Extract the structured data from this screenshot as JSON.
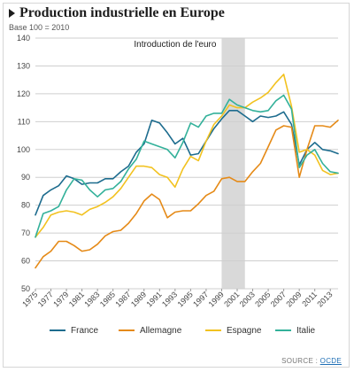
{
  "header": {
    "title": "Production industrielle en Europe",
    "subtitle": "Base 100 = 2010"
  },
  "source": {
    "label": "SOURCE : ",
    "link": "OCDE"
  },
  "colors": {
    "France": "#1d6c8e",
    "Allemagne": "#e58a17",
    "Espagne": "#f2c220",
    "Italie": "#33b19a",
    "grid": "#cfcfcf",
    "band": "#d9d9d9"
  },
  "chart_data": {
    "type": "line",
    "title": "Production industrielle en Europe",
    "subtitle": "Base 100 = 2010",
    "xlabel": "",
    "ylabel": "",
    "x": [
      1975,
      1976,
      1977,
      1978,
      1979,
      1980,
      1981,
      1982,
      1983,
      1984,
      1985,
      1986,
      1987,
      1988,
      1989,
      1990,
      1991,
      1992,
      1993,
      1994,
      1995,
      1996,
      1997,
      1998,
      1999,
      2000,
      2001,
      2002,
      2003,
      2004,
      2005,
      2006,
      2007,
      2008,
      2009,
      2010,
      2011,
      2012,
      2013,
      2014
    ],
    "x_tick_labels": [
      "1975",
      "1977",
      "1979",
      "1981",
      "1983",
      "1985",
      "1987",
      "1989",
      "1991",
      "1993",
      "1995",
      "1997",
      "1999",
      "2001",
      "2003",
      "2005",
      "2007",
      "2009",
      "2011",
      "2013"
    ],
    "xlim": [
      1975,
      2014
    ],
    "ylim": [
      50,
      140
    ],
    "y_ticks": [
      50,
      60,
      70,
      80,
      90,
      100,
      110,
      120,
      130,
      140
    ],
    "grid": true,
    "legend_position": "bottom",
    "highlight": {
      "label": "Introduction de l'euro",
      "from": 1999,
      "to": 2002
    },
    "series": [
      {
        "name": "France",
        "values": [
          76.5,
          83.5,
          85.5,
          87,
          90.5,
          89.5,
          87.5,
          88,
          88,
          89.5,
          89.5,
          92,
          94,
          99,
          102,
          110.5,
          109.5,
          106,
          102,
          104,
          98,
          98.5,
          103,
          107.5,
          111,
          114,
          114,
          112,
          110,
          112,
          111.5,
          112,
          113.5,
          109,
          94.5,
          100,
          102.5,
          100,
          99.5,
          98.5
        ]
      },
      {
        "name": "Allemagne",
        "values": [
          57.5,
          61.5,
          63.5,
          67,
          67,
          65.5,
          63.5,
          64,
          66,
          69,
          70.5,
          71,
          73.5,
          77,
          81.5,
          84,
          82,
          75.5,
          77.5,
          78,
          78,
          80.5,
          83.5,
          85,
          89.5,
          90,
          88.5,
          88.5,
          92,
          95,
          101,
          107,
          108.5,
          108,
          90,
          100,
          108.5,
          108.5,
          108,
          110.5
        ]
      },
      {
        "name": "Espagne",
        "values": [
          68.5,
          72,
          76.5,
          77.5,
          78,
          77.5,
          76.5,
          78.5,
          79.5,
          81,
          83,
          86,
          90,
          94,
          94,
          93.5,
          91,
          90,
          86.5,
          93,
          97.5,
          96,
          103,
          109,
          112,
          116,
          115,
          115,
          117,
          118.5,
          120.5,
          124,
          127,
          115.5,
          99,
          100,
          98,
          92.5,
          91,
          91.5
        ]
      },
      {
        "name": "Italie",
        "values": [
          68.5,
          77,
          78,
          79.5,
          85.5,
          89.5,
          89,
          85.5,
          83,
          85.5,
          86,
          88.5,
          93,
          96.5,
          103,
          102,
          101,
          100,
          97,
          102.5,
          109.5,
          108,
          112,
          113,
          113,
          118,
          116,
          115,
          114,
          113.5,
          114,
          117.5,
          119.5,
          114.5,
          93.5,
          98,
          100,
          95,
          92,
          91.5
        ]
      }
    ]
  }
}
